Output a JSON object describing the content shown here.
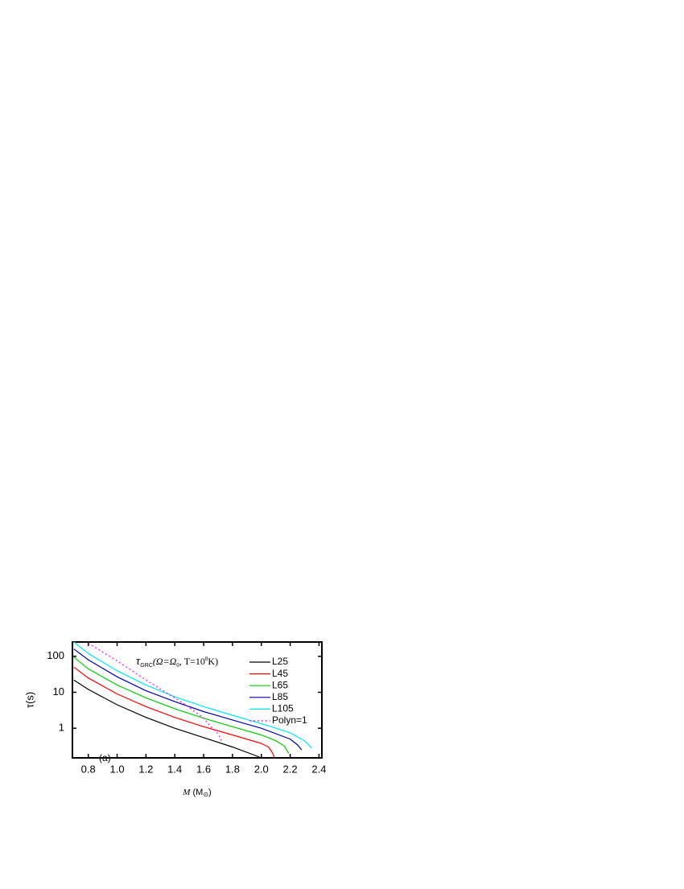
{
  "chart_data": {
    "type": "line",
    "title_parts": [
      "τ",
      "GRC",
      "(Ω=Ω",
      "0",
      ", T=10",
      "8",
      "K)"
    ],
    "x_label_parts": [
      "M",
      " (M",
      "⊙",
      ")"
    ],
    "y_label": "τ(s)",
    "annotation": "(a)",
    "xlim": [
      0.69,
      2.42
    ],
    "xticks": [
      0.8,
      {
        "value": 1.0,
        "label": "1.0"
      },
      1.2,
      1.4,
      1.6,
      1.8,
      {
        "value": 2.0,
        "label": "2.0"
      },
      2.2,
      2.4
    ],
    "ylim": [
      0.15,
      250
    ],
    "yticks": [
      1,
      10,
      100
    ],
    "log_y": true,
    "legend": "upper right",
    "series": [
      {
        "name": "L25",
        "color": "#000000",
        "dash": false,
        "x": [
          0.7,
          0.8,
          1.0,
          1.2,
          1.4,
          1.6,
          1.8,
          1.95,
          2.0
        ],
        "values": [
          22,
          12,
          4.5,
          2.0,
          1.0,
          0.55,
          0.3,
          0.18,
          0.15
        ]
      },
      {
        "name": "L45",
        "color": "#ff0000",
        "dash": false,
        "x": [
          0.7,
          0.8,
          1.0,
          1.2,
          1.4,
          1.6,
          1.8,
          2.0,
          2.05,
          2.08,
          2.09
        ],
        "values": [
          50,
          25,
          9,
          4,
          2,
          1.1,
          0.65,
          0.38,
          0.3,
          0.2,
          0.15
        ]
      },
      {
        "name": "L65",
        "color": "#00cc00",
        "dash": false,
        "x": [
          0.7,
          0.8,
          1.0,
          1.2,
          1.4,
          1.6,
          1.8,
          2.0,
          2.1,
          2.16,
          2.19
        ],
        "values": [
          95,
          45,
          16,
          7,
          3.5,
          1.9,
          1.1,
          0.65,
          0.45,
          0.32,
          0.2
        ]
      },
      {
        "name": "L85",
        "color": "#0000aa",
        "dash": false,
        "x": [
          0.7,
          0.8,
          1.0,
          1.2,
          1.4,
          1.6,
          1.8,
          2.0,
          2.2,
          2.25,
          2.28
        ],
        "values": [
          160,
          80,
          27,
          11,
          5.5,
          2.9,
          1.7,
          1.0,
          0.5,
          0.35,
          0.25
        ]
      },
      {
        "name": "L105",
        "color": "#00e5ff",
        "dash": false,
        "x": [
          0.7,
          0.8,
          1.0,
          1.2,
          1.4,
          1.6,
          1.8,
          2.0,
          2.2,
          2.3,
          2.35
        ],
        "values": [
          250,
          120,
          40,
          16,
          7.5,
          4.0,
          2.3,
          1.35,
          0.75,
          0.45,
          0.28
        ]
      },
      {
        "name": "Polyn=1",
        "color": "#ff00ff",
        "dash": true,
        "x": [
          0.8,
          1.0,
          1.2,
          1.4,
          1.5,
          1.6,
          1.65,
          1.7,
          1.73
        ],
        "values": [
          230,
          75,
          22,
          7,
          3.8,
          1.9,
          1.1,
          0.7,
          0.4
        ]
      }
    ]
  }
}
